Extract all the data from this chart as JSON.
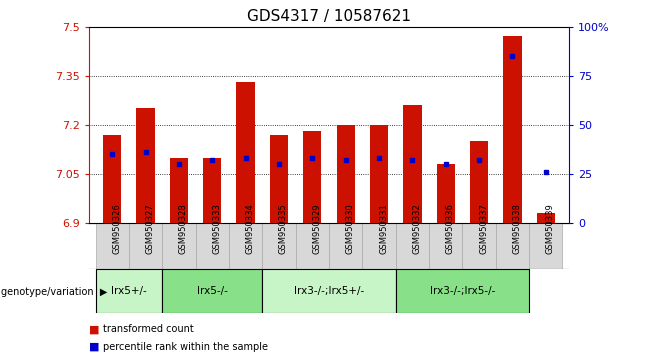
{
  "title": "GDS4317 / 10587621",
  "samples": [
    "GSM950326",
    "GSM950327",
    "GSM950328",
    "GSM950333",
    "GSM950334",
    "GSM950335",
    "GSM950329",
    "GSM950330",
    "GSM950331",
    "GSM950332",
    "GSM950336",
    "GSM950337",
    "GSM950338",
    "GSM950339"
  ],
  "red_values": [
    7.17,
    7.25,
    7.1,
    7.1,
    7.33,
    7.17,
    7.18,
    7.2,
    7.2,
    7.26,
    7.08,
    7.15,
    7.47,
    6.93
  ],
  "blue_values": [
    35,
    36,
    30,
    32,
    33,
    30,
    33,
    32,
    33,
    32,
    30,
    32,
    85,
    26
  ],
  "ymin": 6.9,
  "ymax": 7.5,
  "yticks": [
    6.9,
    7.05,
    7.2,
    7.35,
    7.5
  ],
  "ytick_labels": [
    "6.9",
    "7.05",
    "7.2",
    "7.35",
    "7.5"
  ],
  "y2min": 0,
  "y2max": 100,
  "y2ticks": [
    0,
    25,
    50,
    75,
    100
  ],
  "y2tick_labels": [
    "0",
    "25",
    "50",
    "75",
    "100%"
  ],
  "groups": [
    {
      "label": "lrx5+/-",
      "start": 0,
      "end": 2,
      "color": "#c8f5c8"
    },
    {
      "label": "lrx5-/-",
      "start": 2,
      "end": 5,
      "color": "#88e088"
    },
    {
      "label": "lrx3-/-;lrx5+/-",
      "start": 5,
      "end": 9,
      "color": "#c8f5c8"
    },
    {
      "label": "lrx3-/-;lrx5-/-",
      "start": 9,
      "end": 13,
      "color": "#88e088"
    }
  ],
  "genotype_label": "genotype/variation",
  "legend_red": "transformed count",
  "legend_blue": "percentile rank within the sample",
  "bar_color": "#cc1100",
  "blue_color": "#0000cc",
  "bar_width": 0.55,
  "title_fontsize": 11,
  "tick_fontsize": 8,
  "label_fontsize": 8,
  "sample_box_color": "#d8d8d8",
  "sample_box_edge": "#aaaaaa"
}
